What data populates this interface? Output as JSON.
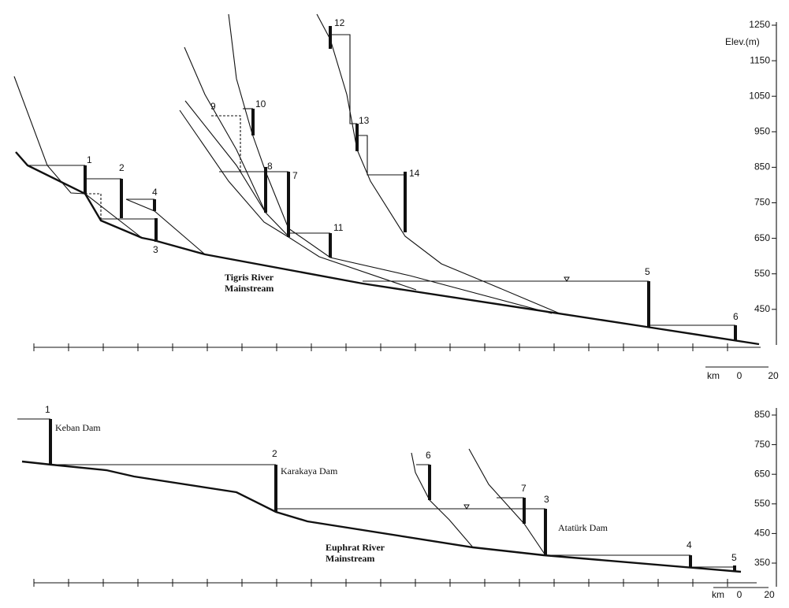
{
  "tigris": {
    "dams": [
      "1",
      "2",
      "3",
      "4",
      "5",
      "6",
      "7",
      "8",
      "9",
      "10",
      "11",
      "12",
      "13",
      "14"
    ],
    "river_label": [
      "Tigris River",
      "Mainstream"
    ],
    "axis_title": "Elev.(m)",
    "elev_ticks": [
      1250,
      1150,
      1050,
      950,
      850,
      750,
      650,
      550,
      450
    ],
    "km_label": "km",
    "scale_ticks": [
      0,
      20
    ]
  },
  "euphrates": {
    "dams": [
      "1",
      "2",
      "3",
      "4",
      "5",
      "6",
      "7"
    ],
    "dam_names": [
      "Keban Dam",
      "Karakaya Dam",
      "Atatürk Dam"
    ],
    "river_label": [
      "Euphrat River",
      "Mainstream"
    ],
    "elev_ticks": [
      850,
      750,
      650,
      550,
      450,
      350
    ],
    "km_label": "km",
    "scale_ticks": [
      0,
      20
    ]
  }
}
